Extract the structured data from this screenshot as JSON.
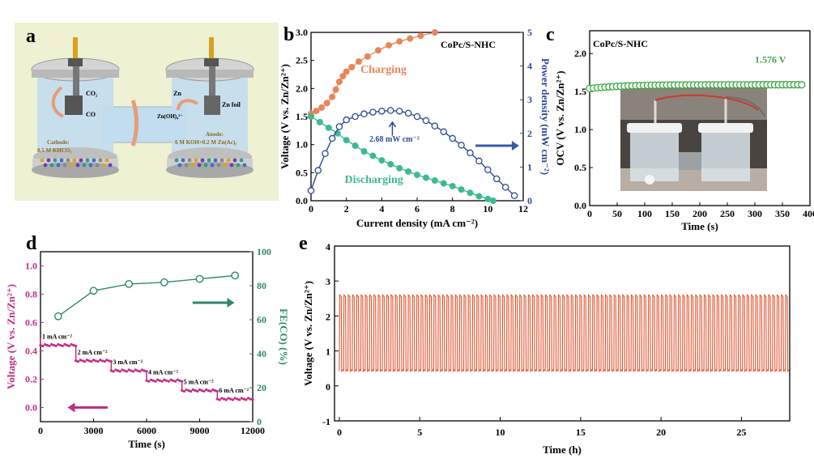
{
  "panel_labels": {
    "a": "a",
    "b": "b",
    "c": "c",
    "d": "d",
    "e": "e"
  },
  "schematic": {
    "co2": "CO₂",
    "co": "CO",
    "cathode_line1": "Cathode:",
    "cathode_line2": "0.5 M KHCO₃",
    "zn": "Zn",
    "zn_foil": "Zn foil",
    "zn_oh": "Zn(OH)₄²⁻",
    "anode_line1": "Anode:",
    "anode_line2": "6 M KOH+0.2 M Zn(Ac)₂",
    "colors": {
      "background": "#eef1d2",
      "electrolyte": "#c2dcf0",
      "lid": "#c9c9c9",
      "arrow": "#e79d78"
    }
  },
  "photo": {
    "description_icon": "cell-photo"
  },
  "chart_data": [
    {
      "type": "line",
      "id": "b",
      "sample_label": "CoPc/S-NHC",
      "xlabel": "Current density (mA cm⁻²)",
      "ylabel_left": "Voltage (V vs. Zn/Zn²⁺)",
      "ylabel_right": "Power density (mW cm⁻²)",
      "xlim": [
        0,
        12
      ],
      "ylim_left": [
        0,
        3
      ],
      "ylim_right": [
        0,
        5
      ],
      "xticks": [
        "0",
        "2",
        "4",
        "6",
        "8",
        "10",
        "12"
      ],
      "yticks_left": [
        "0.0",
        "0.5",
        "1.0",
        "1.5",
        "2.0",
        "2.5",
        "3.0"
      ],
      "yticks_right": [
        "0",
        "1",
        "2",
        "3",
        "4",
        "5"
      ],
      "annotations": {
        "charging": "Charging",
        "discharging": "Discharging",
        "peak": "2.68 mW cm⁻²"
      },
      "series": [
        {
          "name": "Charging",
          "axis": "left",
          "color": "#e8865a",
          "x": [
            0.0,
            0.3,
            0.6,
            0.9,
            1.2,
            1.4,
            1.6,
            1.8,
            2.0,
            2.3,
            2.7,
            3.2,
            3.8,
            4.4,
            5.0,
            5.6,
            6.2,
            7.0
          ],
          "y": [
            1.55,
            1.6,
            1.66,
            1.74,
            1.85,
            1.98,
            2.12,
            2.22,
            2.3,
            2.38,
            2.48,
            2.57,
            2.68,
            2.77,
            2.84,
            2.89,
            2.94,
            3.0
          ]
        },
        {
          "name": "Discharging",
          "axis": "left",
          "color": "#3dba93",
          "x": [
            0.0,
            0.5,
            1.0,
            1.5,
            2.0,
            2.5,
            3.0,
            3.5,
            4.0,
            4.5,
            5.0,
            5.5,
            6.0,
            6.5,
            7.0,
            7.5,
            8.0,
            8.5,
            9.0,
            9.5,
            10.0,
            10.3
          ],
          "y": [
            1.5,
            1.4,
            1.3,
            1.2,
            1.08,
            0.98,
            0.88,
            0.8,
            0.72,
            0.65,
            0.58,
            0.52,
            0.46,
            0.41,
            0.36,
            0.31,
            0.26,
            0.2,
            0.14,
            0.08,
            0.03,
            0.0
          ]
        },
        {
          "name": "Power density",
          "axis": "right",
          "color": "#2e4a94",
          "x": [
            0.0,
            0.4,
            0.8,
            1.2,
            1.6,
            2.0,
            2.5,
            3.0,
            3.5,
            4.0,
            4.5,
            5.0,
            5.5,
            6.0,
            6.5,
            7.0,
            7.5,
            8.0,
            8.5,
            9.0,
            9.5,
            10.0,
            10.5,
            11.0,
            11.5
          ],
          "y": [
            0.3,
            0.9,
            1.4,
            1.85,
            2.2,
            2.4,
            2.5,
            2.58,
            2.63,
            2.66,
            2.68,
            2.66,
            2.6,
            2.5,
            2.38,
            2.22,
            2.05,
            1.85,
            1.65,
            1.42,
            1.18,
            0.92,
            0.65,
            0.4,
            0.15
          ]
        }
      ]
    },
    {
      "type": "scatter",
      "id": "c",
      "sample_label": "CoPc/S-NHC",
      "value_label": "1.576 V",
      "xlabel": "Time (s)",
      "ylabel": "OCV (V vs. Zn/Zn²⁺)",
      "xlim": [
        0,
        400
      ],
      "ylim": [
        0,
        2.3
      ],
      "xticks": [
        "0",
        "50",
        "100",
        "150",
        "200",
        "250",
        "300",
        "350",
        "400"
      ],
      "yticks": [
        "0.0",
        "0.5",
        "1.0",
        "1.5",
        "2.0"
      ],
      "series": [
        {
          "name": "OCV",
          "color": "#3aa640",
          "x_start": 0,
          "x_end": 390,
          "x_step": 7,
          "y_start": 1.54,
          "y_end": 1.59
        }
      ]
    },
    {
      "type": "line",
      "id": "d",
      "xlabel": "Time (s)",
      "ylabel_left": "Voltage (V vs. Zn/Zn²⁺)",
      "ylabel_right": "FE(CO) (%)",
      "xlim": [
        0,
        12000
      ],
      "ylim_left": [
        -0.1,
        1.1
      ],
      "ylim_right": [
        0,
        100
      ],
      "xticks": [
        "0",
        "3000",
        "6000",
        "9000",
        "12000"
      ],
      "yticks_left": [
        "0.0",
        "0.2",
        "0.4",
        "0.6",
        "0.8",
        "1.0"
      ],
      "yticks_right": [
        "0",
        "20",
        "40",
        "60",
        "80",
        "100"
      ],
      "step_labels": [
        "1 mA cm⁻²",
        "2 mA cm⁻²",
        "3 mA cm⁻²",
        "4 mA cm⁻²",
        "5 mA cm⁻²",
        "6 mA cm⁻²"
      ],
      "series": [
        {
          "name": "Voltage",
          "axis": "left",
          "color": "#c02c86",
          "steps": [
            {
              "x0": 0,
              "x1": 2000,
              "y": 0.44
            },
            {
              "x0": 2000,
              "x1": 4000,
              "y": 0.33
            },
            {
              "x0": 4000,
              "x1": 6000,
              "y": 0.26
            },
            {
              "x0": 6000,
              "x1": 8000,
              "y": 0.19
            },
            {
              "x0": 8000,
              "x1": 10000,
              "y": 0.12
            },
            {
              "x0": 10000,
              "x1": 12000,
              "y": 0.06
            }
          ]
        },
        {
          "name": "FE(CO)",
          "axis": "right",
          "color": "#2f8a63",
          "x": [
            1000,
            3000,
            5000,
            7000,
            9000,
            11000
          ],
          "y": [
            62,
            77,
            81,
            82,
            84,
            86
          ]
        }
      ]
    },
    {
      "type": "line",
      "id": "e",
      "xlabel": "Time (h)",
      "ylabel": "Voltage (V vs. Zn/Zn²⁺)",
      "xlim": [
        -0.3,
        28
      ],
      "ylim": [
        -1,
        4
      ],
      "xticks": [
        "0",
        "5",
        "10",
        "15",
        "20",
        "25"
      ],
      "yticks": [
        "-1",
        "0",
        "1",
        "2",
        "3",
        "4"
      ],
      "series": [
        {
          "name": "Cycling",
          "color": "#e0542e",
          "cycles": 105,
          "duration_h": 28,
          "v_high": 2.6,
          "v_low": 0.42
        }
      ]
    }
  ]
}
